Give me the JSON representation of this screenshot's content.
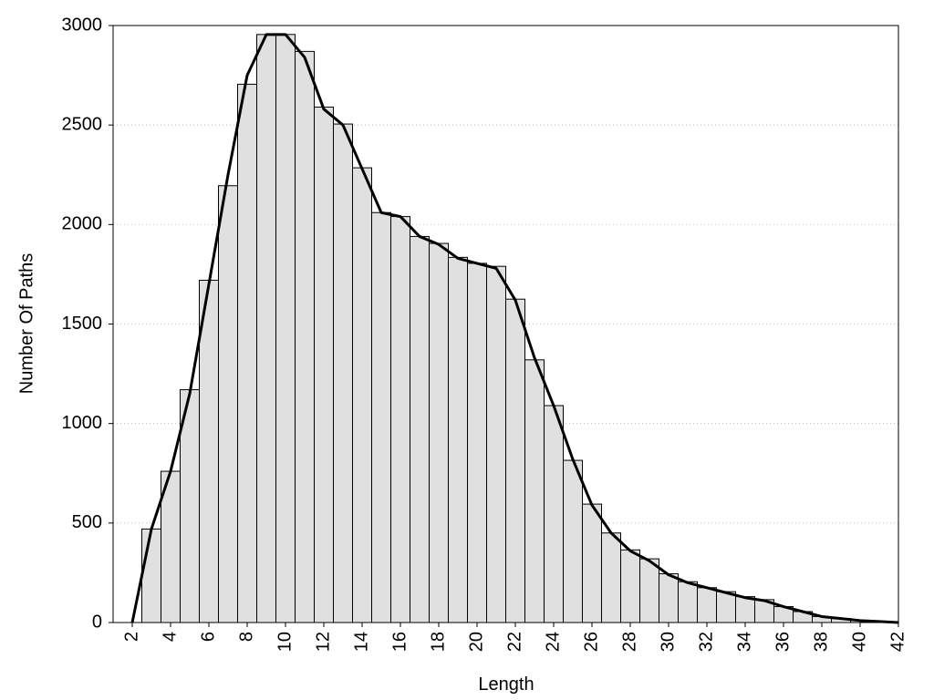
{
  "chart_data": {
    "type": "histogram",
    "x_label": "Length",
    "y_label": "Number Of Paths",
    "bins": [
      2.5,
      3.5,
      4.5,
      5.5,
      6.5,
      7.5,
      8.5,
      9.5,
      10.5,
      11.5,
      12.5,
      13.5,
      14.5,
      15.5,
      16.5,
      17.5,
      18.5,
      19.5,
      20.5,
      21.5,
      22.5,
      23.5,
      24.5,
      25.5,
      26.5,
      27.5,
      28.5,
      29.5,
      30.5,
      31.5,
      32.5,
      33.5,
      34.5,
      35.5,
      36.5,
      37.5,
      38.5,
      39.5,
      40.5,
      41.5
    ],
    "counts": [
      470,
      760,
      1170,
      1720,
      2195,
      2705,
      2955,
      2955,
      2870,
      2590,
      2505,
      2285,
      2060,
      2040,
      1940,
      1905,
      1835,
      1805,
      1790,
      1625,
      1320,
      1090,
      815,
      595,
      450,
      365,
      320,
      245,
      205,
      175,
      155,
      130,
      115,
      80,
      55,
      30,
      20,
      10,
      5
    ],
    "color": "#e0e0e0",
    "curve": {
      "x": [
        2,
        3,
        4,
        5,
        6,
        7,
        8,
        9,
        10,
        11,
        12,
        13,
        14,
        15,
        16,
        17,
        18,
        19,
        20,
        21,
        22,
        23,
        24,
        25,
        26,
        27,
        28,
        29,
        30,
        31,
        32,
        33,
        34,
        35,
        36,
        37,
        38,
        39,
        40,
        41,
        42
      ],
      "values": [
        0,
        470,
        760,
        1150,
        1700,
        2250,
        2750,
        2955,
        2955,
        2840,
        2580,
        2500,
        2280,
        2060,
        2040,
        1940,
        1900,
        1830,
        1805,
        1780,
        1620,
        1330,
        1090,
        820,
        590,
        450,
        360,
        310,
        240,
        200,
        175,
        150,
        125,
        110,
        80,
        55,
        30,
        20,
        10,
        5,
        0
      ],
      "color": "#000000"
    },
    "xlim": [
      1,
      42
    ],
    "ylim": [
      0,
      3000
    ],
    "xticks": [
      2,
      4,
      6,
      8,
      10,
      12,
      14,
      16,
      18,
      20,
      22,
      24,
      26,
      28,
      30,
      32,
      34,
      36,
      38,
      40,
      42
    ],
    "yticks": [
      0,
      500,
      1000,
      1500,
      2000,
      2500,
      3000
    ],
    "grid": true
  }
}
